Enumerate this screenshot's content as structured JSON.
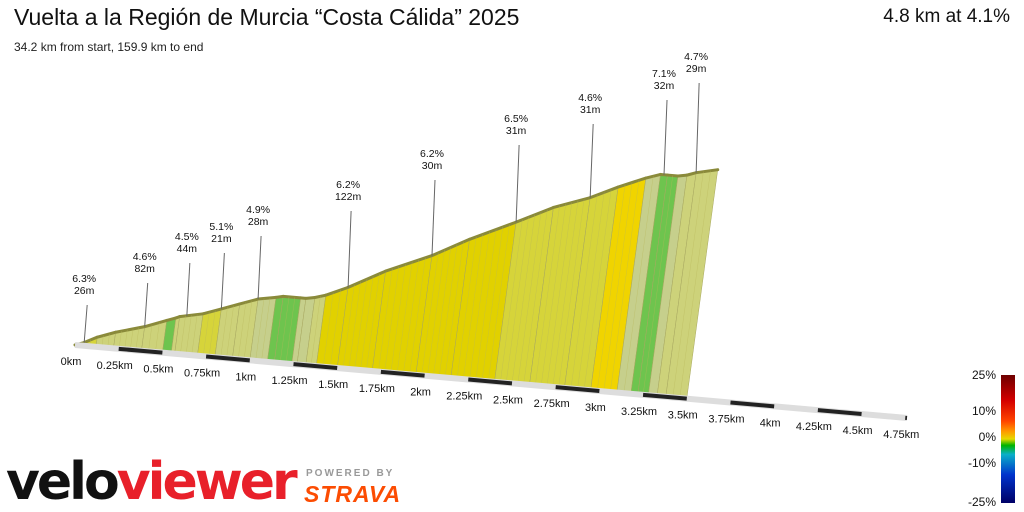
{
  "header": {
    "title": "Vuelta a la Región de Murcia “Costa Cálida” 2025",
    "subtitle": "34.2 km from start, 159.9 km to end",
    "summary": "4.8 km at 4.1%"
  },
  "branding": {
    "logo_part1": "velo",
    "logo_part2": "viewer",
    "powered_by": "POWERED BY",
    "strava": "STRAVA",
    "colors": {
      "velo": "#111111",
      "viewer": "#e8202a",
      "strava": "#fc4c02"
    }
  },
  "chart_data": {
    "type": "area",
    "subtype": "3d-elevation-profile",
    "x_unit": "km",
    "x_ticks": [
      {
        "km": 0,
        "label": "0km"
      },
      {
        "km": 0.25,
        "label": "0.25km"
      },
      {
        "km": 0.5,
        "label": "0.5km"
      },
      {
        "km": 0.75,
        "label": "0.75km"
      },
      {
        "km": 1,
        "label": "1km"
      },
      {
        "km": 1.25,
        "label": "1.25km"
      },
      {
        "km": 1.5,
        "label": "1.5km"
      },
      {
        "km": 1.75,
        "label": "1.75km"
      },
      {
        "km": 2,
        "label": "2km"
      },
      {
        "km": 2.25,
        "label": "2.25km"
      },
      {
        "km": 2.5,
        "label": "2.5km"
      },
      {
        "km": 2.75,
        "label": "2.75km"
      },
      {
        "km": 3,
        "label": "3km"
      },
      {
        "km": 3.25,
        "label": "3.25km"
      },
      {
        "km": 3.5,
        "label": "3.5km"
      },
      {
        "km": 3.75,
        "label": "3.75km"
      },
      {
        "km": 4,
        "label": "4km"
      },
      {
        "km": 4.25,
        "label": "4.25km"
      },
      {
        "km": 4.5,
        "label": "4.5km"
      },
      {
        "km": 4.75,
        "label": "4.75km"
      }
    ],
    "segments": [
      {
        "grade": "6.3%",
        "distance": "26m",
        "at_km": 0.05
      },
      {
        "grade": "4.6%",
        "distance": "82m",
        "at_km": 0.38
      },
      {
        "grade": "4.5%",
        "distance": "44m",
        "at_km": 0.61
      },
      {
        "grade": "5.1%",
        "distance": "21m",
        "at_km": 0.8
      },
      {
        "grade": "4.9%",
        "distance": "28m",
        "at_km": 1.0
      },
      {
        "grade": "6.2%",
        "distance": "122m",
        "at_km": 1.5
      },
      {
        "grade": "6.2%",
        "distance": "30m",
        "at_km": 1.95
      },
      {
        "grade": "6.5%",
        "distance": "31m",
        "at_km": 2.4
      },
      {
        "grade": "4.6%",
        "distance": "31m",
        "at_km": 2.8
      },
      {
        "grade": "7.1%",
        "distance": "32m",
        "at_km": 3.2
      },
      {
        "grade": "4.7%",
        "distance": "29m",
        "at_km": 3.38
      }
    ],
    "profile": [
      [
        0,
        0,
        3.5
      ],
      [
        0.05,
        2,
        5.5
      ],
      [
        0.12,
        6,
        5.0
      ],
      [
        0.22,
        10,
        4.5
      ],
      [
        0.38,
        15,
        4.6
      ],
      [
        0.5,
        20,
        4.2
      ],
      [
        0.55,
        22,
        0.5
      ],
      [
        0.57,
        23,
        4.5
      ],
      [
        0.7,
        26,
        4.0
      ],
      [
        0.8,
        30,
        5.0
      ],
      [
        0.9,
        34,
        4.5
      ],
      [
        1.0,
        38,
        4.9
      ],
      [
        1.1,
        40,
        1.5
      ],
      [
        1.14,
        41,
        0.0
      ],
      [
        1.24,
        41,
        -1.0
      ],
      [
        1.27,
        41,
        1.0
      ],
      [
        1.32,
        42,
        2.5
      ],
      [
        1.38,
        44,
        4.8
      ],
      [
        1.5,
        50,
        6.2
      ],
      [
        1.7,
        62,
        6.0
      ],
      [
        1.95,
        74,
        6.2
      ],
      [
        2.15,
        86,
        6.3
      ],
      [
        2.4,
        99,
        6.5
      ],
      [
        2.6,
        110,
        5.5
      ],
      [
        2.8,
        118,
        5.0
      ],
      [
        2.95,
        126,
        5.5
      ],
      [
        3.1,
        133,
        7.1
      ],
      [
        3.18,
        136,
        1.0
      ],
      [
        3.22,
        136,
        -1.0
      ],
      [
        3.28,
        136,
        0.5
      ],
      [
        3.33,
        137,
        2.5
      ],
      [
        3.38,
        139,
        4.7
      ],
      [
        3.5,
        142,
        3.5
      ]
    ],
    "legend": {
      "ticks": [
        "25%",
        "10%",
        "0%",
        "-10%",
        "-25%"
      ],
      "colors": [
        "#6e0000",
        "#d40000",
        "#ff4400",
        "#ff9900",
        "#e6d800",
        "#00b400",
        "#0ab0c8",
        "#0033cc",
        "#000066"
      ]
    }
  }
}
